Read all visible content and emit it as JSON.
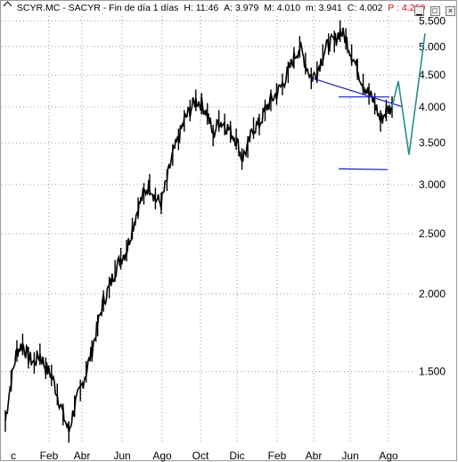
{
  "header": {
    "symbol": "SCYR.MC - SACYR - Fin de día 1 días",
    "time": "H: 11:46",
    "ask": "A: 3.979",
    "mid": "M: 4.010",
    "low": "m: 3.941",
    "close": "C: 4.002",
    "price": "P : 4.260",
    "price_color": "#e00000"
  },
  "window_buttons": [
    "minimize",
    "maximize",
    "close"
  ],
  "chart_data": {
    "type": "line",
    "scale": "log",
    "ylim": [
      1.15,
      5.6
    ],
    "yticks": [
      {
        "value": 5.5,
        "label": "5.500"
      },
      {
        "value": 5.0,
        "label": "5.000"
      },
      {
        "value": 4.5,
        "label": "4.500"
      },
      {
        "value": 4.0,
        "label": "4.000"
      },
      {
        "value": 3.5,
        "label": "3.500"
      },
      {
        "value": 3.0,
        "label": "3.000"
      },
      {
        "value": 2.5,
        "label": "2.500"
      },
      {
        "value": 2.0,
        "label": "2.000"
      },
      {
        "value": 1.5,
        "label": "1.500"
      }
    ],
    "xticks": [
      "c",
      "Feb",
      "Abr",
      "Jun",
      "Ago",
      "Oct",
      "Dic",
      "Feb",
      "Abr",
      "Jun",
      "Ago"
    ],
    "grid": true,
    "series": [
      {
        "values": [
          1.25,
          1.45,
          1.62,
          1.66,
          1.58,
          1.55,
          1.6,
          1.52,
          1.48,
          1.38,
          1.28,
          1.2,
          1.32,
          1.4,
          1.5,
          1.62,
          1.78,
          1.95,
          2.05,
          2.18,
          2.28,
          2.35,
          2.55,
          2.75,
          2.9,
          3.0,
          2.85,
          2.8,
          3.05,
          3.35,
          3.55,
          3.8,
          3.95,
          4.1,
          4.05,
          3.9,
          3.6,
          3.8,
          3.75,
          3.65,
          3.55,
          3.3,
          3.45,
          3.7,
          3.75,
          3.95,
          4.1,
          4.2,
          4.35,
          4.55,
          4.8,
          5.0,
          4.7,
          4.45,
          4.55,
          4.85,
          5.05,
          5.1,
          5.3,
          5.15,
          4.85,
          4.6,
          4.35,
          4.2,
          4.05,
          3.8,
          3.95,
          4.0
        ],
        "color": "#000000"
      }
    ],
    "drawings": [
      {
        "name": "downtrend-line",
        "color": "#1a1ab0",
        "points": [
          [
            4.45,
            4.45
          ],
          [
            4.0,
            4.0
          ]
        ]
      },
      {
        "name": "resistance-line",
        "color": "#1a1ab0",
        "points": [
          [
            4.15,
            4.15
          ],
          [
            4.15,
            4.15
          ]
        ]
      },
      {
        "name": "support-line",
        "color": "#1a1ab0",
        "points": [
          [
            3.18,
            3.18
          ],
          [
            3.17,
            3.17
          ]
        ]
      },
      {
        "name": "projection-path",
        "color": "#2a8c8c",
        "points": [
          [
            4.0,
            4.0
          ],
          [
            4.4,
            4.4
          ],
          [
            3.35,
            3.35
          ],
          [
            5.25,
            5.25
          ]
        ]
      }
    ]
  }
}
